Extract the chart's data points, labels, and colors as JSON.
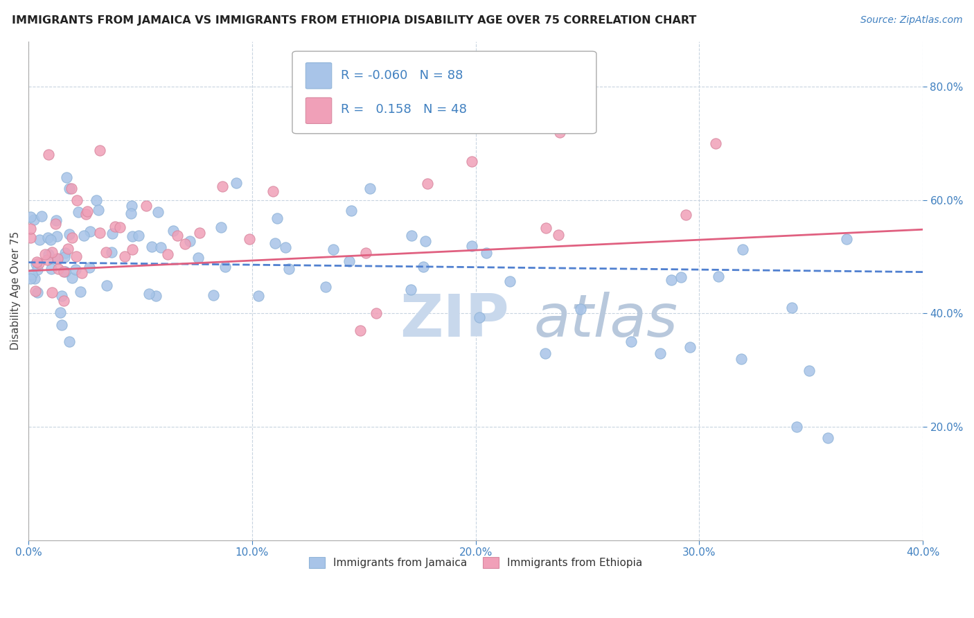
{
  "title": "IMMIGRANTS FROM JAMAICA VS IMMIGRANTS FROM ETHIOPIA DISABILITY AGE OVER 75 CORRELATION CHART",
  "source_text": "Source: ZipAtlas.com",
  "ylabel": "Disability Age Over 75",
  "xlim": [
    0.0,
    0.4
  ],
  "ylim": [
    0.0,
    0.88
  ],
  "xtick_vals": [
    0.0,
    0.1,
    0.2,
    0.3,
    0.4
  ],
  "ytick_vals": [
    0.2,
    0.4,
    0.6,
    0.8
  ],
  "legend_r1": "-0.060",
  "legend_n1": "88",
  "legend_r2": "0.158",
  "legend_n2": "48",
  "color_jamaica": "#a8c4e8",
  "color_ethiopia": "#f0a0b8",
  "trendline_jamaica_color": "#5080d0",
  "trendline_ethiopia_color": "#e06080",
  "background_color": "#ffffff",
  "grid_color": "#c8d4e0",
  "title_color": "#222222",
  "source_color": "#4080c0",
  "tick_color": "#4080c0",
  "ylabel_color": "#444444",
  "legend_text_color": "#4080c0",
  "watermark_zip_color": "#c8d8ec",
  "watermark_atlas_color": "#b8c8dc"
}
